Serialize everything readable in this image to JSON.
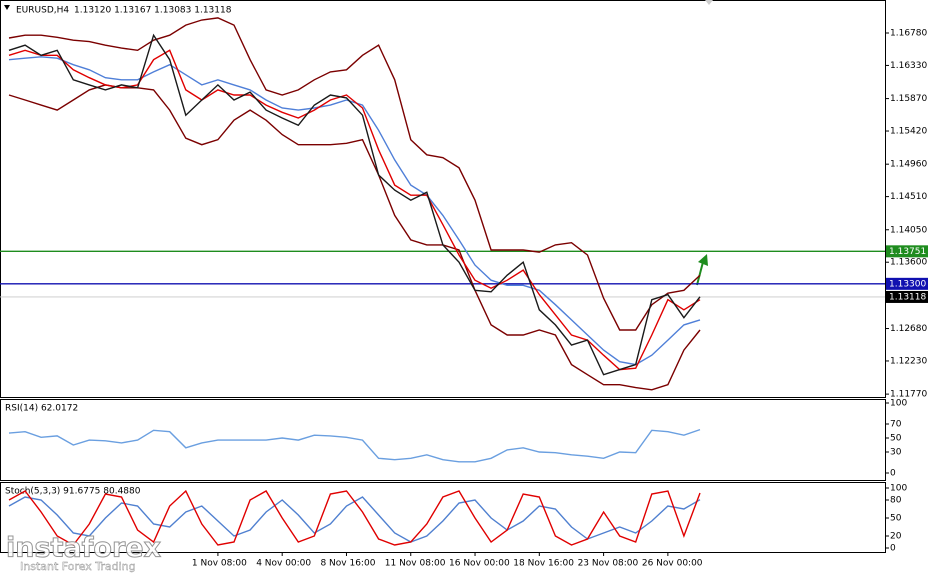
{
  "chart_data": [
    {
      "type": "line",
      "title": "EURUSD,H4",
      "subtitle": "1.13120 1.13167 1.13083 1.13118",
      "categories": [
        null,
        null,
        null,
        null,
        null,
        null,
        null,
        null,
        null,
        null,
        null,
        null,
        null,
        "1 Nov 08:00",
        null,
        null,
        null,
        "4 Nov 00:00",
        null,
        null,
        null,
        "8 Nov 16:00",
        null,
        null,
        null,
        "11 Nov 08:00",
        null,
        null,
        null,
        "16 Nov 00:00",
        null,
        null,
        null,
        "18 Nov 16:00",
        null,
        null,
        null,
        "23 Nov 08:00",
        null,
        null,
        null,
        "26 Nov 00:00",
        null,
        null
      ],
      "series": [
        {
          "color": "#7b0000",
          "values": [
            1.1671,
            1.1675,
            1.1675,
            1.1672,
            1.1668,
            1.1666,
            1.1661,
            1.1657,
            1.1654,
            1.1668,
            1.1675,
            1.1689,
            1.1696,
            1.1699,
            1.1689,
            1.1641,
            1.1599,
            1.1592,
            1.1599,
            1.1613,
            1.1624,
            1.1627,
            1.1647,
            1.1661,
            1.1613,
            1.153,
            1.1509,
            1.1505,
            1.1491,
            1.1446,
            1.1377,
            1.1377,
            1.1377,
            1.1374,
            1.1384,
            1.1387,
            1.137,
            1.131,
            1.1266,
            1.1266,
            1.1301,
            1.1317,
            1.1321,
            1.1342
          ]
        },
        {
          "color": "#7b0000",
          "values": [
            1.1592,
            1.1585,
            1.1578,
            1.1571,
            1.1585,
            1.1599,
            1.1606,
            1.1602,
            1.1602,
            1.1599,
            1.1571,
            1.1532,
            1.1523,
            1.153,
            1.1557,
            1.1571,
            1.1557,
            1.1537,
            1.1523,
            1.1523,
            1.1523,
            1.1525,
            1.153,
            1.1481,
            1.1425,
            1.1391,
            1.1384,
            1.1384,
            1.1377,
            1.1321,
            1.1273,
            1.1259,
            1.1259,
            1.1266,
            1.1259,
            1.1218,
            1.1204,
            1.119,
            1.119,
            1.1186,
            1.1183,
            1.119,
            1.1238,
            1.1266
          ]
        },
        {
          "color": "#4f7fd8",
          "values": [
            1.1641,
            1.1643,
            1.1645,
            1.1643,
            1.1634,
            1.1627,
            1.1616,
            1.1613,
            1.1613,
            1.1624,
            1.1634,
            1.162,
            1.1606,
            1.1613,
            1.1606,
            1.1599,
            1.1585,
            1.1574,
            1.1571,
            1.1574,
            1.1578,
            1.1585,
            1.1578,
            1.1543,
            1.1502,
            1.1467,
            1.1453,
            1.1425,
            1.1391,
            1.1356,
            1.1335,
            1.1328,
            1.1328,
            1.1321,
            1.1301,
            1.128,
            1.1259,
            1.1238,
            1.1222,
            1.1218,
            1.1231,
            1.1252,
            1.1273,
            1.128
          ]
        },
        {
          "color": "#e00000",
          "values": [
            1.1647,
            1.1654,
            1.1647,
            1.1647,
            1.1627,
            1.1616,
            1.1606,
            1.1602,
            1.1606,
            1.1641,
            1.1654,
            1.1599,
            1.1585,
            1.1599,
            1.1592,
            1.1592,
            1.1578,
            1.1568,
            1.156,
            1.1571,
            1.1585,
            1.1592,
            1.1574,
            1.1516,
            1.1467,
            1.1453,
            1.1453,
            1.1412,
            1.137,
            1.1335,
            1.1324,
            1.1335,
            1.1349,
            1.1315,
            1.1287,
            1.1259,
            1.1252,
            1.1231,
            1.1211,
            1.1213,
            1.1259,
            1.1308,
            1.1294,
            1.1308
          ]
        },
        {
          "color": "#1a1a1a",
          "values": [
            1.1654,
            1.1661,
            1.1647,
            1.1654,
            1.1613,
            1.1606,
            1.1599,
            1.1606,
            1.1602,
            1.1675,
            1.1641,
            1.1564,
            1.1585,
            1.1606,
            1.1585,
            1.1596,
            1.1571,
            1.156,
            1.155,
            1.1578,
            1.1592,
            1.1588,
            1.1564,
            1.1481,
            1.146,
            1.1446,
            1.1457,
            1.1384,
            1.136,
            1.1321,
            1.1319,
            1.1342,
            1.136,
            1.1294,
            1.1273,
            1.1245,
            1.1252,
            1.1204,
            1.1211,
            1.1218,
            1.1308,
            1.1315,
            1.1283,
            1.1312
          ]
        }
      ],
      "ylim": [
        1.1173,
        1.1721
      ],
      "yticks": [
        {
          "value": 1.1678,
          "label": "1.16780"
        },
        {
          "value": 1.1633,
          "label": "1.16330"
        },
        {
          "value": 1.1587,
          "label": "1.15870"
        },
        {
          "value": 1.1542,
          "label": "1.15420"
        },
        {
          "value": 1.1496,
          "label": "1.14960"
        },
        {
          "value": 1.1451,
          "label": "1.14510"
        },
        {
          "value": 1.1405,
          "label": "1.14050"
        },
        {
          "value": 1.136,
          "label": "1.13600"
        },
        {
          "value": 1.1268,
          "label": "1.12680"
        },
        {
          "value": 1.1223,
          "label": "1.12230"
        },
        {
          "value": 1.1177,
          "label": "1.11770"
        }
      ],
      "levels": [
        {
          "value": 1.13751,
          "label": "1.13751",
          "color": "#1e8c1e"
        },
        {
          "value": 1.133,
          "label": "1.13300",
          "color": "#1010b0"
        }
      ],
      "last": {
        "value": 1.13118,
        "label": "1.13118",
        "color": "#000000"
      }
    },
    {
      "type": "line",
      "title": "RSI(14) 62.0172",
      "series": [
        {
          "color": "#6a9fe0",
          "values": [
            57,
            59,
            51,
            53,
            40,
            47,
            46,
            43,
            47,
            61,
            59,
            36,
            43,
            47,
            47,
            47,
            47,
            50,
            47,
            54,
            53,
            51,
            47,
            21,
            19,
            21,
            26,
            19,
            16,
            16,
            21,
            33,
            36,
            30,
            29,
            26,
            24,
            21,
            30,
            29,
            61,
            59,
            54,
            62.0172
          ]
        }
      ],
      "ylim": [
        0,
        100
      ],
      "yticks": [
        100,
        70,
        50,
        30,
        0
      ]
    },
    {
      "type": "line",
      "title": "Stoch(5,3,3) 91.6775 80.4880",
      "series": [
        {
          "color": "#5080d0",
          "values": [
            70,
            85,
            80,
            55,
            25,
            20,
            50,
            75,
            70,
            40,
            35,
            60,
            70,
            45,
            20,
            30,
            60,
            80,
            55,
            25,
            40,
            70,
            85,
            55,
            25,
            10,
            20,
            45,
            75,
            80,
            50,
            30,
            45,
            70,
            65,
            35,
            15,
            25,
            35,
            25,
            45,
            70,
            65,
            80.488
          ]
        },
        {
          "color": "#e00000",
          "values": [
            80,
            95,
            60,
            20,
            5,
            40,
            90,
            85,
            30,
            10,
            70,
            95,
            40,
            5,
            10,
            80,
            95,
            50,
            10,
            20,
            90,
            95,
            60,
            15,
            5,
            10,
            40,
            85,
            95,
            50,
            10,
            30,
            90,
            85,
            20,
            5,
            15,
            60,
            20,
            10,
            90,
            95,
            20,
            91.6775
          ]
        }
      ],
      "ylim": [
        0,
        100
      ],
      "yticks": [
        100,
        80,
        50,
        20,
        0
      ]
    }
  ],
  "brand": "instaforex",
  "tagline": "Instant Forex Trading"
}
